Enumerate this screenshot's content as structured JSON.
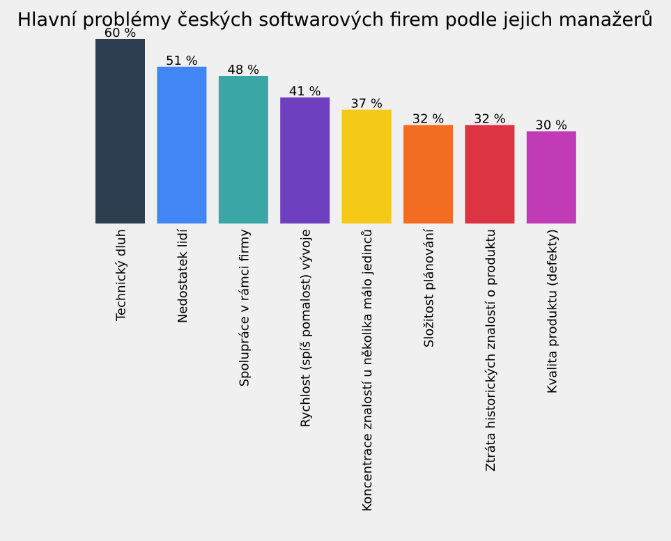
{
  "chart_data": {
    "type": "bar",
    "title": "Hlavní problémy českých softwarových firem podle jejich manažerů",
    "xlabel": "",
    "ylabel": "",
    "ylim": [
      0,
      60
    ],
    "grid": false,
    "categories": [
      "Technický dluh",
      "Nedostatek lidí",
      "Spolupráce v rámci firmy",
      "Rychlost (spíš pomalost) vývoje",
      "Koncentrace znalostí u několika málo jedinců",
      "Složitost plánování",
      "Ztráta historických znalostí o produktu",
      "Kvalita produktu (defekty)"
    ],
    "values": [
      60,
      51,
      48,
      41,
      37,
      32,
      32,
      30
    ],
    "value_labels": [
      "60 %",
      "51 %",
      "48 %",
      "41 %",
      "37 %",
      "32 %",
      "32 %",
      "30 %"
    ],
    "colors": [
      "#2c3e50",
      "#4285f4",
      "#3aa6a6",
      "#6e40c0",
      "#f5c918",
      "#f26c22",
      "#dd3444",
      "#c23bb6"
    ]
  }
}
